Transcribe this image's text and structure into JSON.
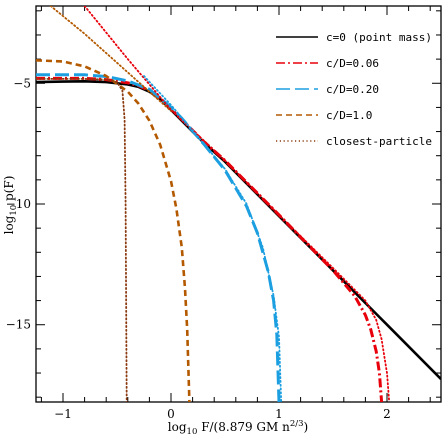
{
  "chart_data": {
    "type": "line",
    "xlabel_main": "log",
    "xlabel_sub": "10",
    "xlabel_rest": " F/(8.879 GM n",
    "xlabel_sup": "2/3",
    "xlabel_end": ")",
    "ylabel_main": "log",
    "ylabel_sub": "10",
    "ylabel_rest": " p(F)",
    "xlim": [
      -1.25,
      2.5
    ],
    "ylim": [
      -18.2,
      -1.8
    ],
    "x_ticks": [
      -1,
      0,
      1,
      2
    ],
    "x_tick_labels": [
      "−1",
      "0",
      "1",
      "2"
    ],
    "y_ticks": [
      -5,
      -10,
      -15
    ],
    "y_tick_labels": [
      "−5",
      "−10",
      "−15"
    ],
    "grid": false,
    "legend_position": "top-right",
    "series": [
      {
        "name": "c=0 (point mass)",
        "color": "#000000",
        "style": "solid",
        "width": 2.6,
        "x": [
          -1.25,
          -1.0,
          -0.8,
          -0.6,
          -0.4,
          -0.3,
          -0.2,
          -0.1,
          0.0,
          0.1,
          0.2,
          0.3,
          0.5,
          1.0,
          1.5,
          2.0,
          2.5
        ],
        "y": [
          -4.95,
          -4.93,
          -4.92,
          -4.95,
          -5.05,
          -5.15,
          -5.35,
          -5.65,
          -6.1,
          -6.55,
          -7.0,
          -7.45,
          -8.25,
          -10.5,
          -12.75,
          -15.0,
          -17.25
        ]
      },
      {
        "name": "c/D=0.06",
        "color": "#e8000b",
        "style": "dashdot",
        "width": 3.0,
        "x": [
          -1.25,
          -1.0,
          -0.8,
          -0.6,
          -0.4,
          -0.3,
          -0.2,
          -0.1,
          0.0,
          0.1,
          0.3,
          0.5,
          1.0,
          1.5,
          1.7,
          1.8,
          1.85,
          1.9,
          1.93,
          1.95
        ],
        "y": [
          -4.8,
          -4.8,
          -4.8,
          -4.85,
          -4.98,
          -5.1,
          -5.3,
          -5.62,
          -6.05,
          -6.5,
          -7.4,
          -8.2,
          -10.45,
          -12.75,
          -13.8,
          -14.6,
          -15.2,
          -16.1,
          -17.0,
          -18.2
        ]
      },
      {
        "name": "c/D=0.20",
        "color": "#1c9fe0",
        "style": "longdash",
        "width": 3.0,
        "x": [
          -1.25,
          -1.0,
          -0.8,
          -0.6,
          -0.4,
          -0.2,
          0.0,
          0.1,
          0.3,
          0.5,
          0.7,
          0.8,
          0.9,
          0.95,
          0.98,
          1.0
        ],
        "y": [
          -4.65,
          -4.65,
          -4.65,
          -4.72,
          -4.9,
          -5.25,
          -6.0,
          -6.45,
          -7.5,
          -8.6,
          -10.1,
          -11.2,
          -12.8,
          -14.0,
          -15.4,
          -18.2
        ]
      },
      {
        "name": "c/D=1.0",
        "color": "#b35900",
        "style": "shortdash",
        "width": 2.6,
        "x": [
          -1.25,
          -1.0,
          -0.8,
          -0.6,
          -0.4,
          -0.3,
          -0.2,
          -0.1,
          0.0,
          0.05,
          0.1,
          0.13,
          0.15,
          0.17
        ],
        "y": [
          -4.05,
          -4.1,
          -4.3,
          -4.7,
          -5.35,
          -5.85,
          -6.55,
          -7.55,
          -9.05,
          -10.2,
          -11.8,
          -13.5,
          -15.2,
          -18.2
        ]
      },
      {
        "name": "closest-particle",
        "color": "#8b3a10",
        "style": "dotted",
        "width": 1.8,
        "x": [
          -1.25,
          -1.0,
          -0.8,
          -0.6,
          -0.5,
          -0.45,
          -0.43,
          -0.42,
          -0.41
        ],
        "y": [
          -4.82,
          -4.82,
          -4.82,
          -4.85,
          -4.95,
          -5.3,
          -6.5,
          -10.0,
          -18.2
        ]
      },
      {
        "name": "",
        "color": "#b35900",
        "style": "dotted",
        "width": 1.8,
        "x": [
          -1.25,
          -0.8,
          -0.6,
          -0.4,
          -0.2,
          0.0
        ],
        "y": [
          -1.3,
          -2.95,
          -3.75,
          -4.55,
          -5.35,
          -6.15
        ]
      },
      {
        "name": "",
        "color": "#e8000b",
        "style": "dotted",
        "width": 1.8,
        "x": [
          -0.8,
          -0.4,
          0.0,
          0.5,
          1.0,
          1.5,
          1.8,
          1.9,
          1.95,
          2.0,
          2.02
        ],
        "y": [
          -1.8,
          -4.0,
          -6.1,
          -8.2,
          -10.45,
          -12.65,
          -14.0,
          -14.8,
          -15.6,
          -17.0,
          -18.2
        ]
      },
      {
        "name": "",
        "color": "#1c9fe0",
        "style": "dotted",
        "width": 1.8,
        "x": [
          -0.25,
          0.0,
          0.3,
          0.5,
          0.7,
          0.85,
          0.95,
          1.0,
          1.02
        ],
        "y": [
          -4.7,
          -5.9,
          -7.5,
          -8.55,
          -10.0,
          -11.8,
          -13.8,
          -15.5,
          -18.2
        ]
      }
    ]
  }
}
